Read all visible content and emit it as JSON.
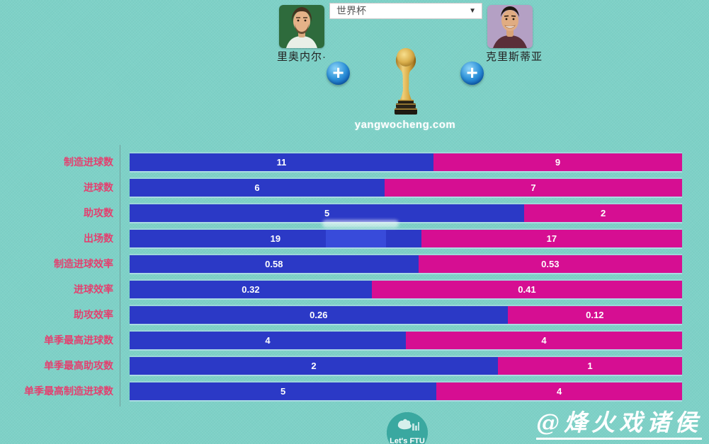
{
  "colors": {
    "background": "#7ed1c7",
    "bar_left": "#2b39c6",
    "bar_right": "#d60e92",
    "category_label": "#e3406f",
    "value_text": "#ffffff"
  },
  "header": {
    "left_player": {
      "name": "里奥内尔·",
      "avatar": "messi-portrait"
    },
    "right_player": {
      "name": "克里斯蒂亚",
      "avatar": "ronaldo-portrait"
    },
    "competition_select": {
      "value": "世界杯",
      "arrow": "▼"
    },
    "add_button_symbol": "+",
    "site_watermark": "yangwocheng.com"
  },
  "chart_data": {
    "type": "bar",
    "orientation": "horizontal-stacked-comparison",
    "grid": false,
    "legend": false,
    "categories": [
      "制造进球数",
      "进球数",
      "助攻数",
      "出场数",
      "制造进球效率",
      "进球效率",
      "助攻效率",
      "单季最高进球数",
      "单季最高助攻数",
      "单季最高制造进球数"
    ],
    "series": [
      {
        "name": "里奥内尔·",
        "color": "#2b39c6",
        "values": [
          11,
          6,
          5,
          19,
          0.58,
          0.32,
          0.26,
          4,
          2,
          5
        ]
      },
      {
        "name": "克里斯蒂亚",
        "color": "#d60e92",
        "values": [
          9,
          7,
          2,
          17,
          0.53,
          0.41,
          0.12,
          4,
          1,
          4
        ]
      }
    ],
    "value_labels": "inside-segments-centered"
  },
  "footer": {
    "logo_text": "Let's FTU",
    "author_watermark": "@烽火戏诸侯"
  }
}
